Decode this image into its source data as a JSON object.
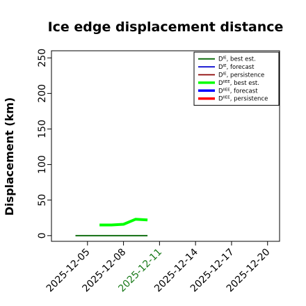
{
  "chart_data": {
    "type": "line",
    "title": "Ice edge displacement distance",
    "ylabel": "Displacement (km)",
    "xlabel": "",
    "ylim": [
      -8,
      260
    ],
    "xlim": [
      "2025-12-02",
      "2025-12-21"
    ],
    "y_ticks": [
      0,
      50,
      100,
      150,
      200,
      250
    ],
    "x_ticks": [
      {
        "date": "2025-12-05",
        "label": "2025-12-05",
        "color": "#000000"
      },
      {
        "date": "2025-12-08",
        "label": "2025-12-08",
        "color": "#000000"
      },
      {
        "date": "2025-12-11",
        "label": "2025-12-11",
        "color": "#1a7a1a"
      },
      {
        "date": "2025-12-14",
        "label": "2025-12-14",
        "color": "#000000"
      },
      {
        "date": "2025-12-17",
        "label": "2025-12-17",
        "color": "#000000"
      },
      {
        "date": "2025-12-20",
        "label": "2025-12-20",
        "color": "#000000"
      }
    ],
    "grid": false,
    "legend_position": "top-right",
    "legend": [
      {
        "label": "D",
        "sup": "IE",
        "suffix": ", best est.",
        "color": "#006400",
        "thick": false
      },
      {
        "label": "D",
        "sup": "IE",
        "suffix": ", forecast",
        "color": "#0000cd",
        "thick": false
      },
      {
        "label": "D",
        "sup": "IE",
        "suffix": ", persistence",
        "color": "#8b0000",
        "thick": false
      },
      {
        "label": "D",
        "sup": "IIEE",
        "suffix": ", best est.",
        "color": "#00ff00",
        "thick": true
      },
      {
        "label": "D",
        "sup": "IIEE",
        "suffix": ", forecast",
        "color": "#0000ff",
        "thick": true
      },
      {
        "label": "D",
        "sup": "IIEE",
        "suffix": ", persistence",
        "color": "#ff0000",
        "thick": true
      }
    ],
    "series": [
      {
        "color": "#006400",
        "thick": false,
        "x": [
          "2025-12-04",
          "2025-12-10"
        ],
        "y": [
          0,
          0
        ]
      },
      {
        "color": "#00ff00",
        "thick": true,
        "x": [
          "2025-12-06",
          "2025-12-07",
          "2025-12-08",
          "2025-12-09",
          "2025-12-10"
        ],
        "y": [
          15,
          15,
          16,
          23,
          22
        ]
      }
    ]
  }
}
